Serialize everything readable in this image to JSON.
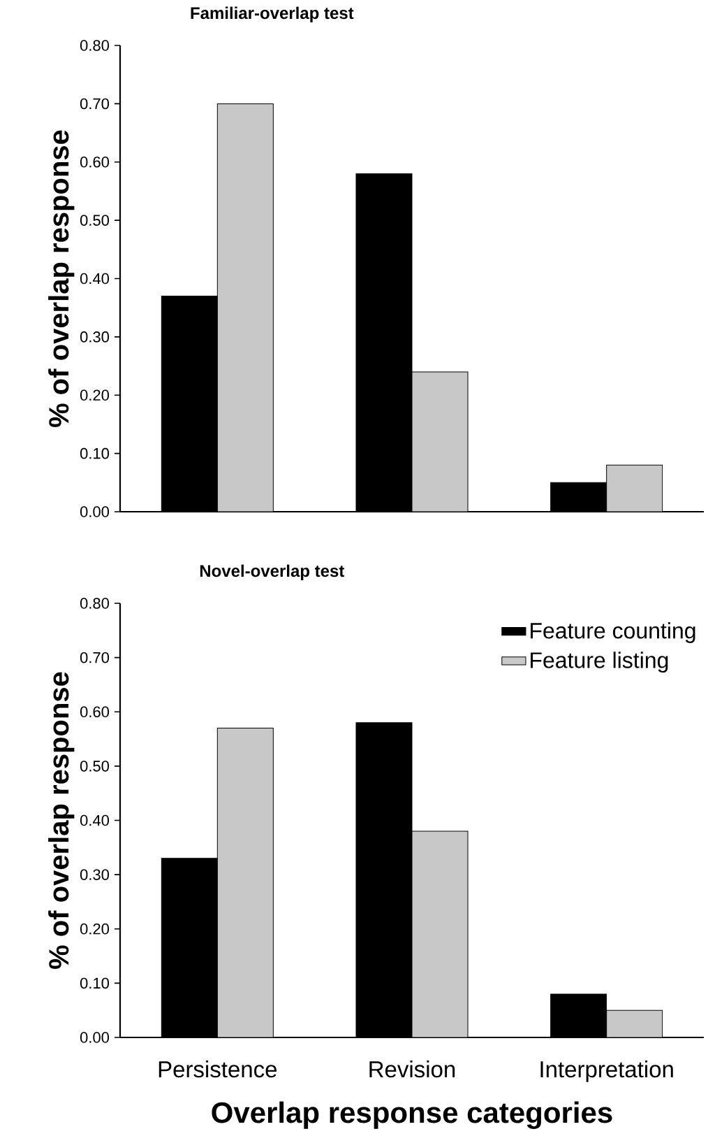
{
  "chart_data": [
    {
      "type": "bar",
      "title": "Familiar-overlap test",
      "ylabel": "% of overlap response",
      "categories": [
        null,
        null,
        null
      ],
      "legend": false,
      "series": [
        {
          "color": "#000000",
          "values": [
            0.37,
            0.58,
            0.05
          ]
        },
        {
          "color": "#c8c8c8",
          "values": [
            0.7,
            0.24,
            0.08
          ]
        }
      ],
      "ylim": [
        0,
        0.8
      ],
      "yticks": [
        {
          "value": 0,
          "label": "0.00"
        },
        {
          "value": 0.1,
          "label": "0.10"
        },
        {
          "value": 0.2,
          "label": "0.20"
        },
        {
          "value": 0.3,
          "label": "0.30"
        },
        {
          "value": 0.4,
          "label": "0.40"
        },
        {
          "value": 0.5,
          "label": "0.50"
        },
        {
          "value": 0.6,
          "label": "0.60"
        },
        {
          "value": 0.7,
          "label": "0.70"
        },
        {
          "value": 0.8,
          "label": "0.80"
        }
      ]
    },
    {
      "type": "bar",
      "title": "Novel-overlap test",
      "ylabel": "% of overlap response",
      "xlabel": "Overlap response categories",
      "categories": [
        "Persistence",
        "Revision",
        "Interpretation"
      ],
      "legend": "top right",
      "series": [
        {
          "name": "Feature counting",
          "color": "#000000",
          "values": [
            0.33,
            0.58,
            0.08
          ]
        },
        {
          "name": "Feature listing",
          "color": "#c8c8c8",
          "values": [
            0.57,
            0.38,
            0.05
          ]
        }
      ],
      "ylim": [
        0,
        0.8
      ],
      "yticks": [
        {
          "value": 0,
          "label": "0.00"
        },
        {
          "value": 0.1,
          "label": "0.10"
        },
        {
          "value": 0.2,
          "label": "0.20"
        },
        {
          "value": 0.3,
          "label": "0.30"
        },
        {
          "value": 0.4,
          "label": "0.40"
        },
        {
          "value": 0.5,
          "label": "0.50"
        },
        {
          "value": 0.6,
          "label": "0.60"
        },
        {
          "value": 0.7,
          "label": "0.70"
        },
        {
          "value": 0.8,
          "label": "0.80"
        }
      ]
    }
  ]
}
